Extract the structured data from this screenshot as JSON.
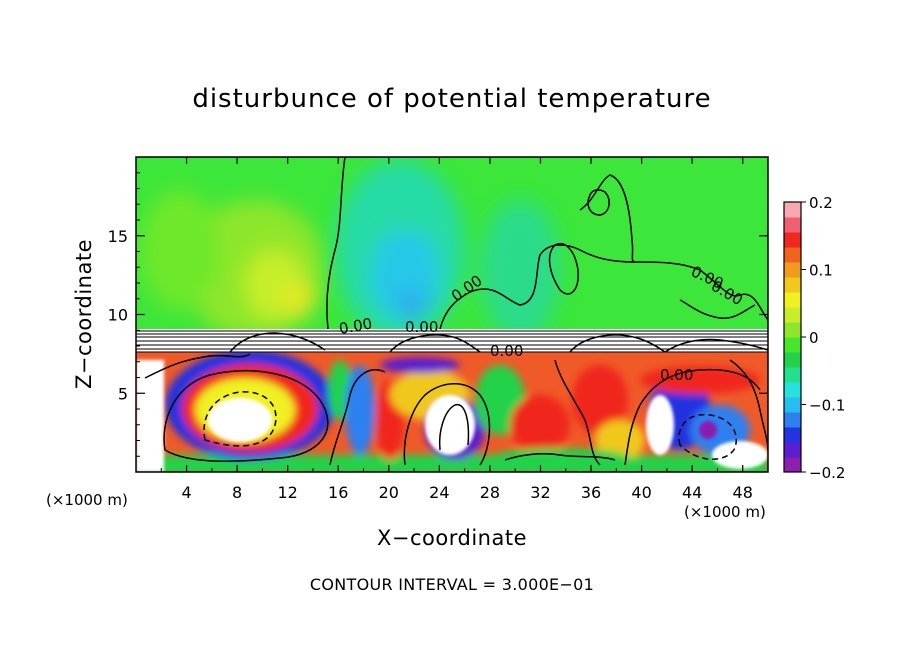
{
  "chart_data": {
    "type": "heatmap",
    "title": "disturbunce of potential temperature",
    "xlabel": "X−coordinate",
    "ylabel": "Z−coordinate",
    "x_unit": "(×1000 m)",
    "y_unit": "(×1000 m)",
    "xlim": [
      0,
      50
    ],
    "ylim": [
      0,
      20
    ],
    "x_ticks": [
      4,
      8,
      12,
      16,
      20,
      24,
      28,
      32,
      36,
      40,
      44,
      48
    ],
    "y_ticks": [
      5,
      10,
      15
    ],
    "colorbar": {
      "min": -0.2,
      "max": 0.2,
      "tick_values": [
        0.2,
        0.1,
        0,
        -0.1,
        -0.2
      ],
      "tick_labels": [
        "0.2",
        "0.1",
        "0",
        "−0.1",
        "−0.2"
      ],
      "colors": [
        "#8c1fb0",
        "#5a1fd0",
        "#2233e0",
        "#2f7ff0",
        "#27bdf0",
        "#27e0e0",
        "#22e090",
        "#22d24a",
        "#48e62a",
        "#8ee62a",
        "#c8ee2a",
        "#f0f022",
        "#f0c81e",
        "#f09a1e",
        "#f0641e",
        "#f0281e",
        "#f06070",
        "#f8a8b0"
      ]
    },
    "contour_labels": [
      "0.00",
      "0.00",
      "0.00",
      "0.00",
      "0.00",
      "0.00",
      "0.00"
    ],
    "contour_interval_text": "CONTOUR INTERVAL = 3.000E−01"
  }
}
